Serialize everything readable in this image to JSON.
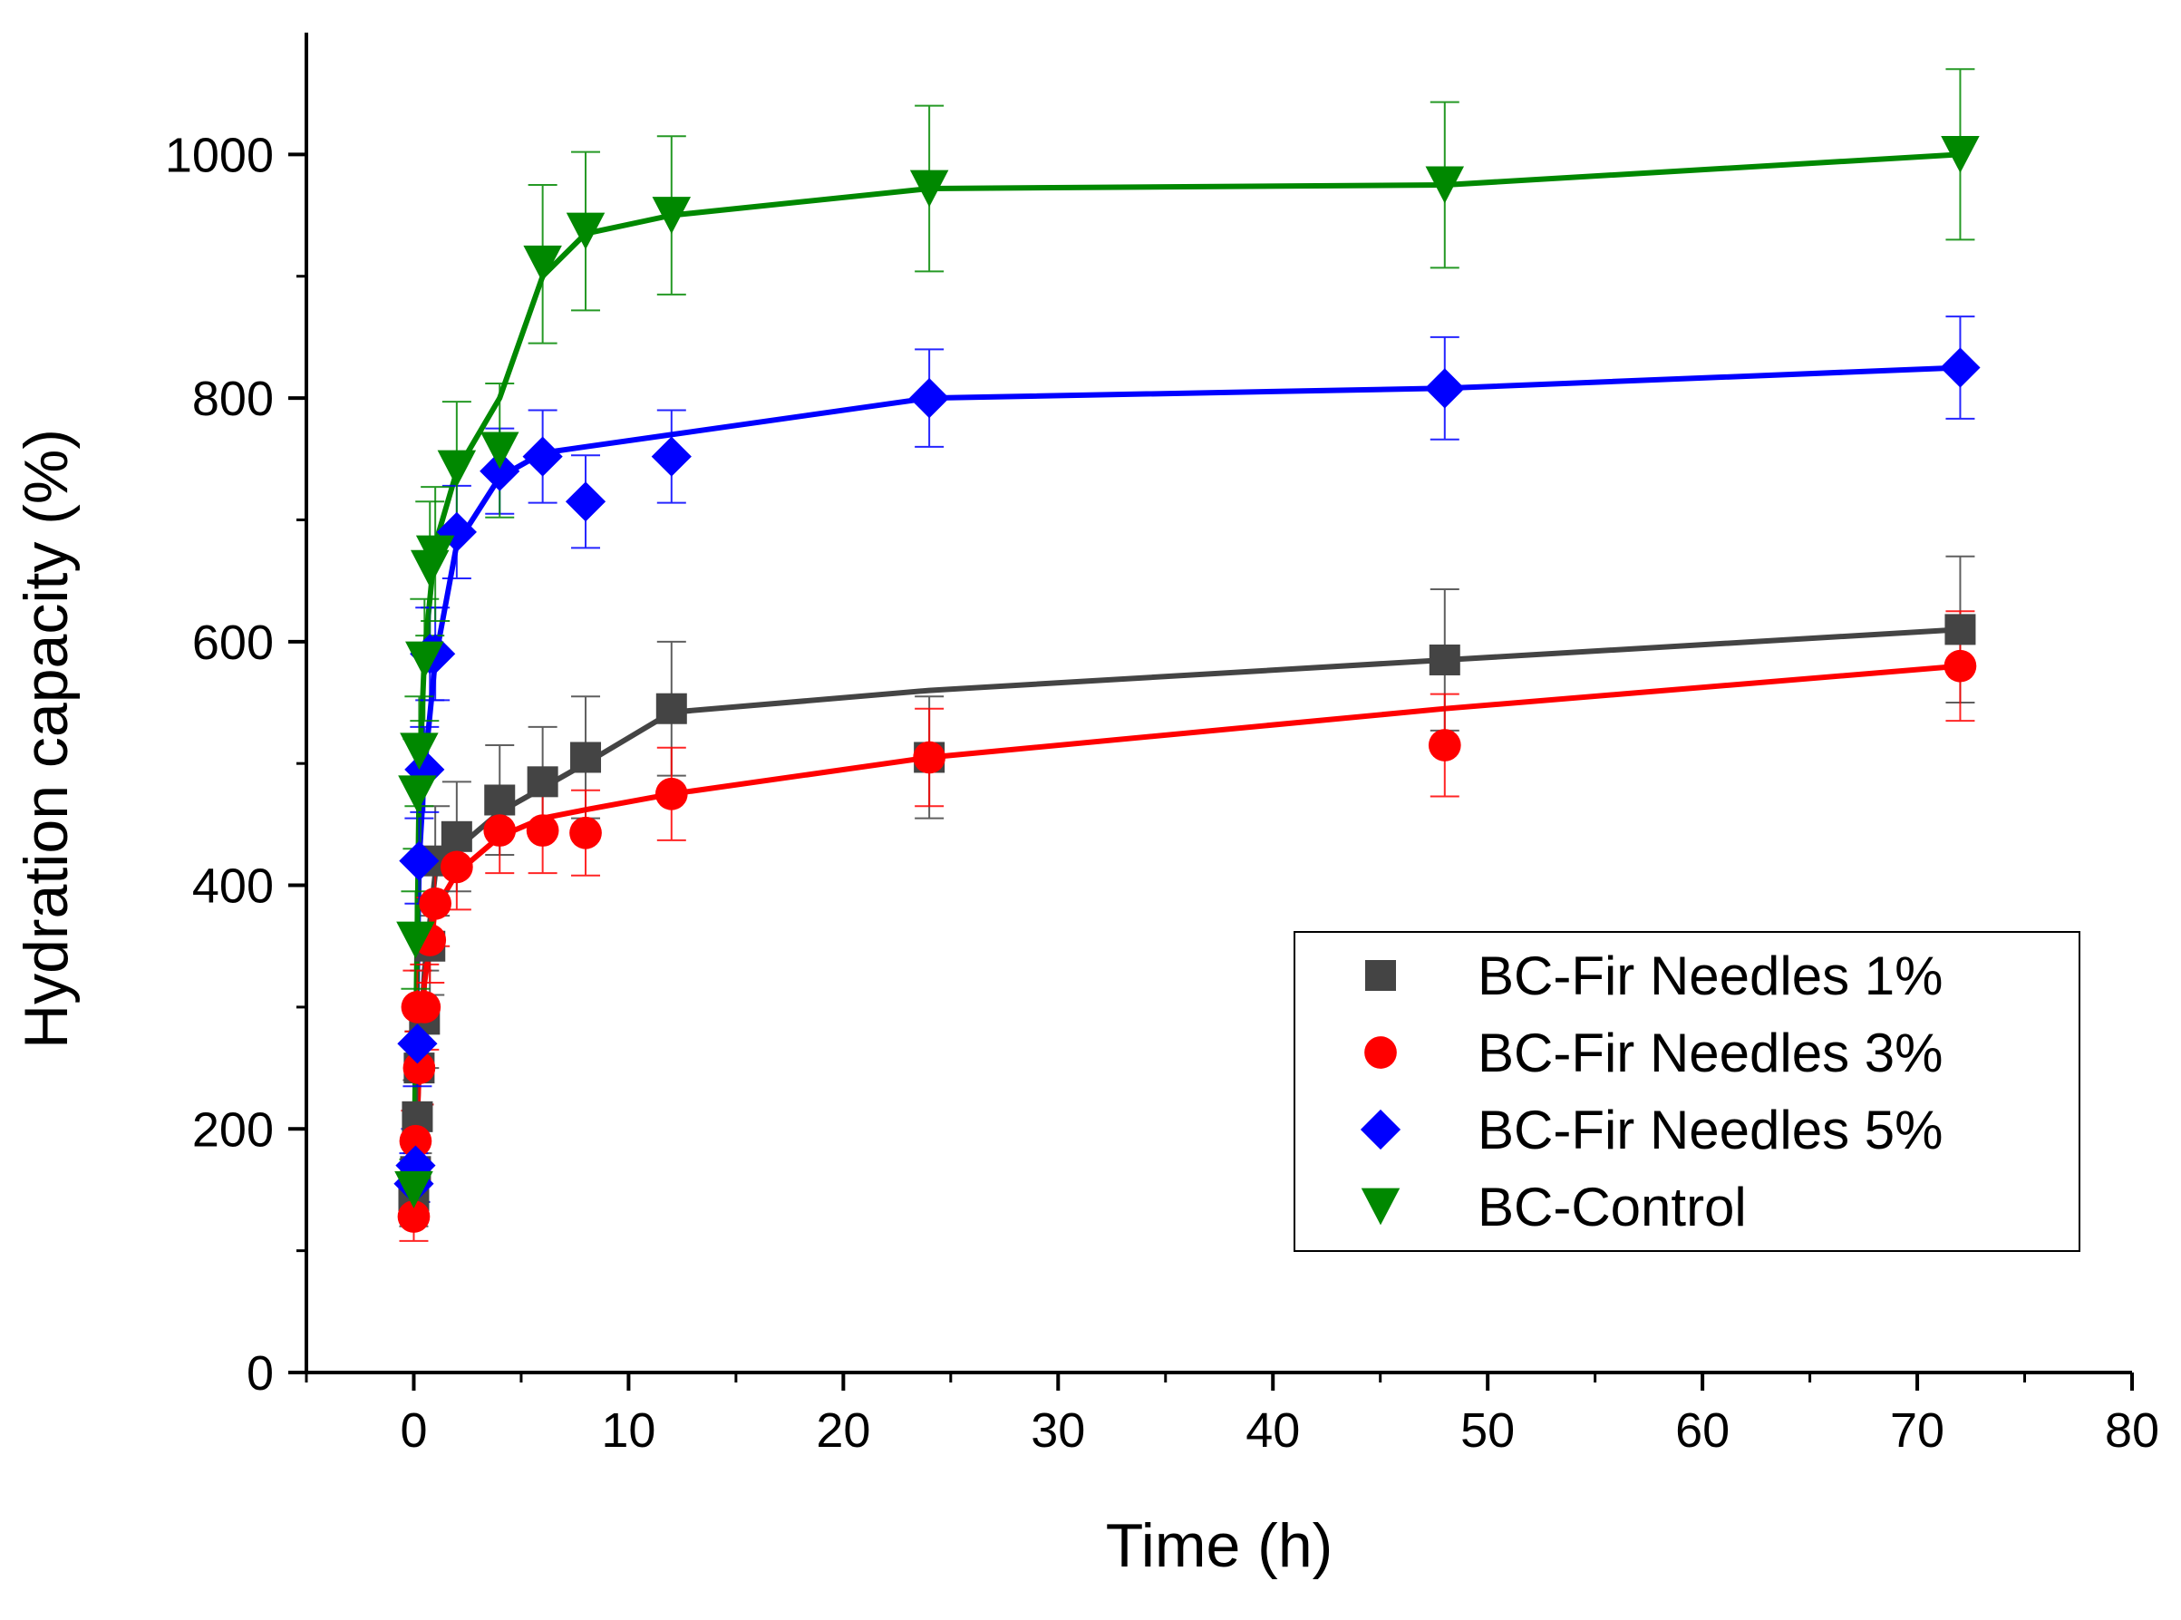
{
  "chart_data": {
    "type": "line",
    "title": "",
    "xlabel": "Time (h)",
    "ylabel": "Hydration capacity (%)",
    "xlim": [
      -5,
      80
    ],
    "ylim": [
      0,
      1100
    ],
    "x_ticks": [
      0,
      10,
      20,
      30,
      40,
      50,
      60,
      70,
      80
    ],
    "y_ticks": [
      0,
      200,
      400,
      600,
      800,
      1000
    ],
    "grid": false,
    "legend_position": "bottom-right",
    "series": [
      {
        "name": "BC-Fir Needles 1%",
        "color": "#444444",
        "marker": "square",
        "x": [
          0,
          0.083,
          0.167,
          0.25,
          0.5,
          0.75,
          1,
          2,
          4,
          6,
          8,
          12,
          24,
          48,
          72
        ],
        "y": [
          145,
          165,
          210,
          250,
          290,
          350,
          420,
          440,
          470,
          485,
          505,
          545,
          505,
          585,
          610
        ],
        "err": [
          25,
          25,
          30,
          30,
          40,
          40,
          45,
          45,
          45,
          45,
          50,
          55,
          50,
          58,
          60
        ],
        "fit_x": [
          0,
          0.25,
          0.5,
          1,
          2,
          4,
          6,
          8,
          12,
          24,
          48,
          72
        ],
        "fit_y": [
          145,
          250,
          330,
          410,
          430,
          460,
          480,
          500,
          542,
          560,
          585,
          610
        ]
      },
      {
        "name": "BC-Fir Needles 3%",
        "color": "#ff0000",
        "marker": "circle",
        "x": [
          0,
          0.083,
          0.167,
          0.25,
          0.5,
          0.75,
          1,
          2,
          4,
          6,
          8,
          12,
          24,
          48,
          72
        ],
        "y": [
          128,
          190,
          300,
          250,
          300,
          355,
          385,
          415,
          445,
          445,
          443,
          475,
          505,
          515,
          580
        ],
        "err": [
          20,
          25,
          30,
          30,
          35,
          35,
          35,
          35,
          35,
          35,
          35,
          38,
          40,
          42,
          45
        ],
        "fit_x": [
          0,
          0.25,
          0.5,
          1,
          2,
          4,
          6,
          8,
          12,
          24,
          48,
          72
        ],
        "fit_y": [
          128,
          250,
          320,
          380,
          410,
          440,
          455,
          462,
          475,
          505,
          545,
          580
        ]
      },
      {
        "name": "BC-Fir Needles 5%",
        "color": "#0000ff",
        "marker": "diamond",
        "x": [
          0,
          0.083,
          0.167,
          0.25,
          0.5,
          0.75,
          1,
          2,
          4,
          6,
          8,
          12,
          24,
          48,
          72
        ],
        "y": [
          155,
          170,
          270,
          420,
          495,
          590,
          590,
          690,
          740,
          752,
          715,
          752,
          800,
          808,
          825
        ],
        "err": [
          25,
          30,
          35,
          35,
          35,
          38,
          38,
          38,
          35,
          38,
          38,
          38,
          40,
          42,
          42
        ],
        "fit_x": [
          0,
          0.25,
          0.5,
          1,
          2,
          4,
          6,
          8,
          12,
          24,
          48,
          72
        ],
        "fit_y": [
          155,
          420,
          495,
          585,
          680,
          735,
          755,
          760,
          770,
          800,
          808,
          825
        ]
      },
      {
        "name": "BC-Control",
        "color": "#008800",
        "marker": "triangle-down",
        "x": [
          0,
          0.083,
          0.167,
          0.25,
          0.5,
          0.75,
          1,
          2,
          4,
          6,
          8,
          12,
          24,
          48,
          72
        ],
        "y": [
          150,
          355,
          475,
          510,
          585,
          660,
          672,
          742,
          757,
          910,
          937,
          950,
          972,
          975,
          1000
        ],
        "err": [
          25,
          40,
          45,
          45,
          50,
          55,
          55,
          55,
          55,
          65,
          65,
          65,
          68,
          68,
          70
        ],
        "fit_x": [
          0,
          0.25,
          0.5,
          1,
          2,
          4,
          6,
          8,
          12,
          24,
          48,
          72
        ],
        "fit_y": [
          150,
          480,
          590,
          680,
          740,
          800,
          900,
          935,
          950,
          972,
          975,
          1000
        ]
      }
    ]
  }
}
